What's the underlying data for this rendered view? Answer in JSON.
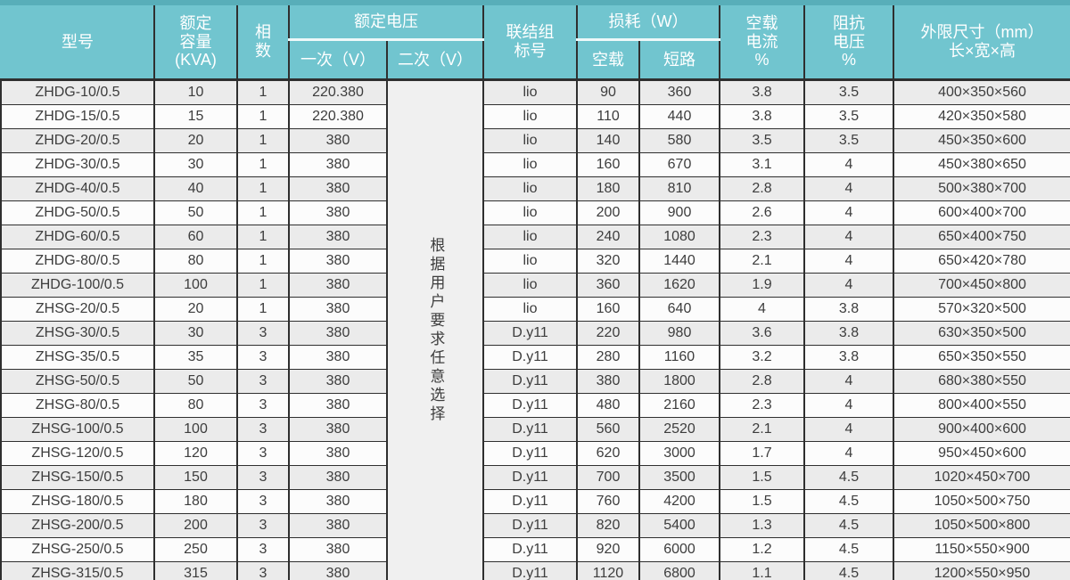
{
  "colors": {
    "header_bg": "#71c5cf",
    "top_strip": "#58aeb9",
    "header_text": "#ffffff",
    "header_divider": "#eef8f9",
    "border": "#2f2f2f",
    "row_odd": "#ebebeb",
    "row_even": "#fcfcfc",
    "note_bg": "#f0f0f0",
    "cell_text": "#3d3d3d"
  },
  "table": {
    "header": {
      "model": "型号",
      "capacity": "额定\n容量\n(KVA)",
      "phases": "相\n数",
      "voltage_group": "额定电压",
      "primary": "一次（V）",
      "secondary": "二次（V）",
      "connection": "联结组\n标号",
      "loss_group": "损耗（W）",
      "no_load": "空载",
      "short_circuit": "短路",
      "no_load_current": "空载\n电流\n%",
      "impedance_voltage": "阻抗\n电压\n%",
      "dimensions": "外限尺寸（mm）\n长×宽×高"
    },
    "secondary_voltage_note": "根据用户要求任意选择",
    "column_keys": [
      "model",
      "capacity-kva",
      "phases",
      "primary-v",
      "connection-group",
      "no-load-loss",
      "short-circuit-loss",
      "no-load-current-pct",
      "impedance-voltage-pct",
      "dimensions-mm"
    ],
    "rows": [
      {
        "cells": [
          "ZHDG-10/0.5",
          "10",
          "1",
          "220.380",
          "lio",
          "90",
          "360",
          "3.8",
          "3.5",
          "400×350×560"
        ]
      },
      {
        "cells": [
          "ZHDG-15/0.5",
          "15",
          "1",
          "220.380",
          "lio",
          "110",
          "440",
          "3.8",
          "3.5",
          "420×350×580"
        ]
      },
      {
        "cells": [
          "ZHDG-20/0.5",
          "20",
          "1",
          "380",
          "lio",
          "140",
          "580",
          "3.5",
          "3.5",
          "450×350×600"
        ]
      },
      {
        "cells": [
          "ZHDG-30/0.5",
          "30",
          "1",
          "380",
          "lio",
          "160",
          "670",
          "3.1",
          "4",
          "450×380×650"
        ]
      },
      {
        "cells": [
          "ZHDG-40/0.5",
          "40",
          "1",
          "380",
          "lio",
          "180",
          "810",
          "2.8",
          "4",
          "500×380×700"
        ]
      },
      {
        "cells": [
          "ZHDG-50/0.5",
          "50",
          "1",
          "380",
          "lio",
          "200",
          "900",
          "2.6",
          "4",
          "600×400×700"
        ]
      },
      {
        "cells": [
          "ZHDG-60/0.5",
          "60",
          "1",
          "380",
          "lio",
          "240",
          "1080",
          "2.3",
          "4",
          "650×400×750"
        ]
      },
      {
        "cells": [
          "ZHDG-80/0.5",
          "80",
          "1",
          "380",
          "lio",
          "320",
          "1440",
          "2.1",
          "4",
          "650×420×780"
        ]
      },
      {
        "cells": [
          "ZHDG-100/0.5",
          "100",
          "1",
          "380",
          "lio",
          "360",
          "1620",
          "1.9",
          "4",
          "700×450×800"
        ]
      },
      {
        "cells": [
          "ZHSG-20/0.5",
          "20",
          "1",
          "380",
          "lio",
          "160",
          "640",
          "4",
          "3.8",
          "570×320×500"
        ]
      },
      {
        "cells": [
          "ZHSG-30/0.5",
          "30",
          "3",
          "380",
          "D.y11",
          "220",
          "980",
          "3.6",
          "3.8",
          "630×350×500"
        ]
      },
      {
        "cells": [
          "ZHSG-35/0.5",
          "35",
          "3",
          "380",
          "D.y11",
          "280",
          "1160",
          "3.2",
          "3.8",
          "650×350×550"
        ]
      },
      {
        "cells": [
          "ZHSG-50/0.5",
          "50",
          "3",
          "380",
          "D.y11",
          "380",
          "1800",
          "2.8",
          "4",
          "680×380×550"
        ]
      },
      {
        "cells": [
          "ZHSG-80/0.5",
          "80",
          "3",
          "380",
          "D.y11",
          "480",
          "2160",
          "2.3",
          "4",
          "800×400×550"
        ]
      },
      {
        "cells": [
          "ZHSG-100/0.5",
          "100",
          "3",
          "380",
          "D.y11",
          "560",
          "2520",
          "2.1",
          "4",
          "900×400×600"
        ]
      },
      {
        "cells": [
          "ZHSG-120/0.5",
          "120",
          "3",
          "380",
          "D.y11",
          "620",
          "3000",
          "1.7",
          "4",
          "950×450×600"
        ]
      },
      {
        "cells": [
          "ZHSG-150/0.5",
          "150",
          "3",
          "380",
          "D.y11",
          "700",
          "3500",
          "1.5",
          "4.5",
          "1020×450×700"
        ]
      },
      {
        "cells": [
          "ZHSG-180/0.5",
          "180",
          "3",
          "380",
          "D.y11",
          "760",
          "4200",
          "1.5",
          "4.5",
          "1050×500×750"
        ]
      },
      {
        "cells": [
          "ZHSG-200/0.5",
          "200",
          "3",
          "380",
          "D.y11",
          "820",
          "5400",
          "1.3",
          "4.5",
          "1050×500×800"
        ]
      },
      {
        "cells": [
          "ZHSG-250/0.5",
          "250",
          "3",
          "380",
          "D.y11",
          "920",
          "6000",
          "1.2",
          "4.5",
          "1150×550×900"
        ]
      },
      {
        "cells": [
          "ZHSG-315/0.5",
          "315",
          "3",
          "380",
          "D.y11",
          "1120",
          "6800",
          "1.1",
          "4.5",
          "1200×550×950"
        ]
      }
    ]
  }
}
